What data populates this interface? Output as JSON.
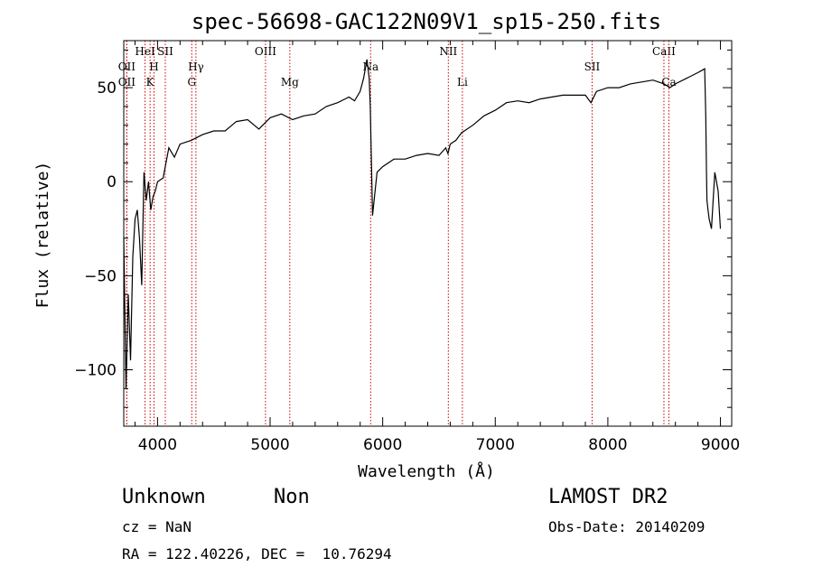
{
  "chart_data": {
    "type": "line",
    "title": "spec-56698-GAC122N09V1_sp15-250.fits",
    "xlabel": "Wavelength (Å)",
    "ylabel": "Flux (relative)",
    "xlim": [
      3700,
      9100
    ],
    "ylim": [
      -130,
      75
    ],
    "xticks": [
      {
        "value": 4000,
        "label": "4000"
      },
      {
        "value": 5000,
        "label": "5000"
      },
      {
        "value": 6000,
        "label": "6000"
      },
      {
        "value": 7000,
        "label": "7000"
      },
      {
        "value": 8000,
        "label": "8000"
      },
      {
        "value": 9000,
        "label": "9000"
      }
    ],
    "yticks": [
      {
        "value": -100,
        "label": "−100"
      },
      {
        "value": -50,
        "label": "−50"
      },
      {
        "value": 0,
        "label": "0"
      },
      {
        "value": 50,
        "label": "50"
      }
    ],
    "series": [
      {
        "x": [
          3700,
          3720,
          3740,
          3760,
          3780,
          3800,
          3820,
          3840,
          3860,
          3880,
          3900,
          3920,
          3940,
          3960,
          3980,
          4000,
          4050,
          4100,
          4150,
          4200,
          4300,
          4400,
          4500,
          4600,
          4700,
          4800,
          4900,
          5000,
          5100,
          5200,
          5300,
          5400,
          5500,
          5600,
          5700,
          5750,
          5800,
          5830,
          5860,
          5880,
          5890,
          5900,
          5910,
          5950,
          6000,
          6100,
          6200,
          6300,
          6400,
          6500,
          6560,
          6580,
          6600,
          6650,
          6700,
          6800,
          6900,
          7000,
          7100,
          7200,
          7300,
          7400,
          7500,
          7600,
          7700,
          7800,
          7850,
          7900,
          8000,
          8100,
          8200,
          8300,
          8400,
          8500,
          8550,
          8600,
          8700,
          8800,
          8830,
          8860,
          8870,
          8875,
          8880,
          8890,
          8900,
          8920,
          8950,
          8980,
          9000
        ],
        "y": [
          -30,
          -110,
          -60,
          -95,
          -40,
          -20,
          -15,
          -30,
          -55,
          5,
          -10,
          0,
          -15,
          -8,
          -5,
          0,
          2,
          18,
          13,
          20,
          22,
          25,
          27,
          27,
          32,
          33,
          28,
          34,
          36,
          33,
          35,
          36,
          40,
          42,
          45,
          43,
          48,
          55,
          65,
          55,
          40,
          10,
          -18,
          5,
          8,
          12,
          12,
          14,
          15,
          14,
          18,
          15,
          20,
          22,
          26,
          30,
          35,
          38,
          42,
          43,
          42,
          44,
          45,
          46,
          46,
          46,
          42,
          48,
          50,
          50,
          52,
          53,
          54,
          52,
          50,
          52,
          55,
          58,
          59,
          60,
          35,
          8,
          -10,
          -15,
          -20,
          -25,
          5,
          -5,
          -25
        ]
      }
    ],
    "line_markers": [
      {
        "wavelength": 3727,
        "label": "OII",
        "row": 2
      },
      {
        "wavelength": 3727,
        "label": "OII",
        "row": 3
      },
      {
        "wavelength": 3889,
        "label": "HeI",
        "row": 1
      },
      {
        "wavelength": 3934,
        "label": "K",
        "row": 3
      },
      {
        "wavelength": 3969,
        "label": "H",
        "row": 2
      },
      {
        "wavelength": 4069,
        "label": "SII",
        "row": 1
      },
      {
        "wavelength": 4304,
        "label": "G",
        "row": 3
      },
      {
        "wavelength": 4341,
        "label": "Hγ",
        "row": 2
      },
      {
        "wavelength": 4959,
        "label": "OIII",
        "row": 1
      },
      {
        "wavelength": 5175,
        "label": "Mg",
        "row": 3
      },
      {
        "wavelength": 5893,
        "label": "Na",
        "row": 2
      },
      {
        "wavelength": 6583,
        "label": "NII",
        "row": 1
      },
      {
        "wavelength": 6708,
        "label": "Li",
        "row": 3
      },
      {
        "wavelength": 7860,
        "label": "SII",
        "row": 2
      },
      {
        "wavelength": 8498,
        "label": "CaII",
        "row": 1
      },
      {
        "wavelength": 8542,
        "label": "Ca",
        "row": 3
      }
    ],
    "colors": {
      "spectrum": "#000000",
      "marker": "#cc0000"
    }
  },
  "info": {
    "class_label": "Unknown",
    "subclass_label": "Non",
    "survey": "LAMOST DR2",
    "cz": "cz = NaN",
    "obs_date": "Obs-Date: 20140209",
    "coords": "RA = 122.40226, DEC =  10.76294"
  }
}
